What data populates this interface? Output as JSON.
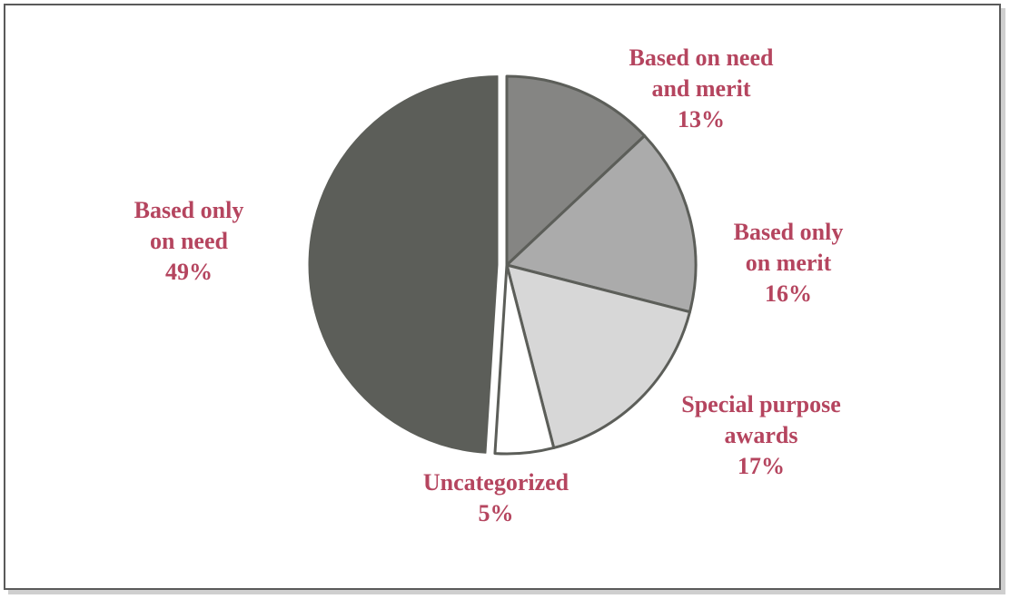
{
  "chart_data": {
    "type": "pie",
    "title": "",
    "start_angle_deg": 0,
    "direction": "clockwise",
    "slices": [
      {
        "label_lines": [
          "Based on need",
          "and merit"
        ],
        "percent_text": "13%",
        "value": 13,
        "color": "#858583",
        "exploded": false
      },
      {
        "label_lines": [
          "Based only",
          "on merit"
        ],
        "percent_text": "16%",
        "value": 16,
        "color": "#ababab",
        "exploded": false
      },
      {
        "label_lines": [
          "Special purpose",
          "awards"
        ],
        "percent_text": "17%",
        "value": 17,
        "color": "#d7d7d7",
        "exploded": false
      },
      {
        "label_lines": [
          "Uncategorized"
        ],
        "percent_text": "5%",
        "value": 5,
        "color": "#ffffff",
        "exploded": false
      },
      {
        "label_lines": [
          "Based only",
          "on need"
        ],
        "percent_text": "49%",
        "value": 49,
        "color": "#5c5e59",
        "exploded": true
      }
    ],
    "separator_color": "#5c5e59"
  }
}
